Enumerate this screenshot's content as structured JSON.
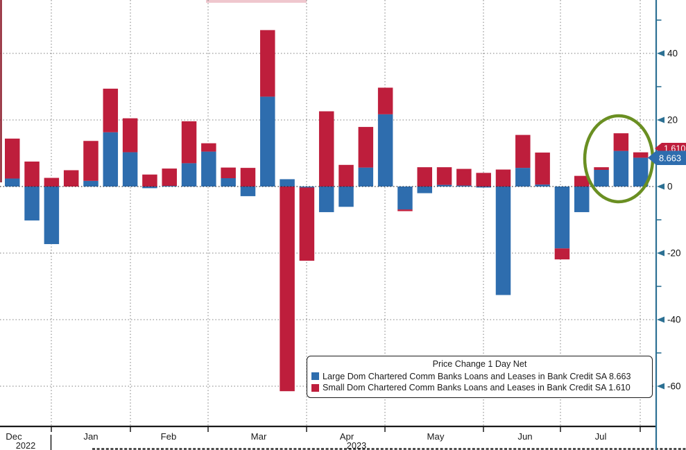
{
  "chart_data": {
    "type": "bar",
    "stacked": true,
    "title": "Price Change 1 Day Net",
    "frequency": "weekly",
    "x_month_labels": [
      "Dec",
      "Jan",
      "Feb",
      "Mar",
      "Apr",
      "May",
      "Jun",
      "Jul"
    ],
    "x_year_labels": [
      "2022",
      "2023"
    ],
    "y_major_ticks": [
      40,
      20,
      0,
      -20,
      -40,
      -60
    ],
    "y_minor_ticks": [
      50,
      30,
      10,
      -10,
      -30,
      -50
    ],
    "ylim": [
      -65,
      56
    ],
    "grid": "dotted",
    "legend_position": "bottom-right",
    "series": [
      {
        "name": "Large Dom Chartered Comm Banks Loans and Leases in Bank Credit SA",
        "last_value": 8.663,
        "color": "#2e6dae",
        "values": [
          2.4,
          -10.2,
          -17.3,
          0,
          1.7,
          16.3,
          10.3,
          -0.5,
          0.2,
          7.0,
          10.5,
          2.5,
          -2.9,
          27.0,
          2.2,
          -0.3,
          -7.7,
          -6.1,
          5.7,
          21.7,
          -6.9,
          -2.0,
          0.5,
          0.3,
          -0.3,
          -32.6,
          5.6,
          0.6,
          -18.6,
          -7.7,
          5.0,
          10.7,
          8.663
        ]
      },
      {
        "name": "Small Dom Chartered Comm Banks Loans and Leases in Bank Credit SA",
        "last_value": 1.61,
        "color": "#be1e3c",
        "values": [
          12.0,
          7.5,
          2.6,
          4.9,
          12.0,
          13.1,
          10.2,
          3.6,
          5.2,
          12.6,
          2.5,
          3.2,
          5.6,
          20.0,
          -61.5,
          -22.0,
          22.6,
          6.5,
          12.2,
          8.0,
          -0.5,
          5.8,
          5.3,
          5.0,
          4.1,
          5.1,
          9.9,
          9.6,
          -3.3,
          3.2,
          0.8,
          5.3,
          1.61
        ]
      }
    ]
  },
  "legend": {
    "title": "Price Change 1 Day Net",
    "items": [
      {
        "label": "Large Dom Chartered Comm Banks Loans and Leases in Bank Credit SA 8.663",
        "color": "#2e6dae"
      },
      {
        "label": "Small Dom Chartered Comm Banks Loans and Leases in Bank Credit SA 1.610",
        "color": "#be1e3c"
      }
    ]
  },
  "axis_badges": {
    "blue_value": "8.663",
    "red_value": "1.610"
  },
  "annotations": {
    "green_circle": {
      "color": "#6a8f22"
    }
  },
  "colors": {
    "large_series": "#2e6dae",
    "small_series": "#be1e3c",
    "axis_line": "#2c7093",
    "grid_dots": "#7d7d7d",
    "dark_red_edge": "#8e1f2f",
    "text": "#1a1a1a"
  }
}
